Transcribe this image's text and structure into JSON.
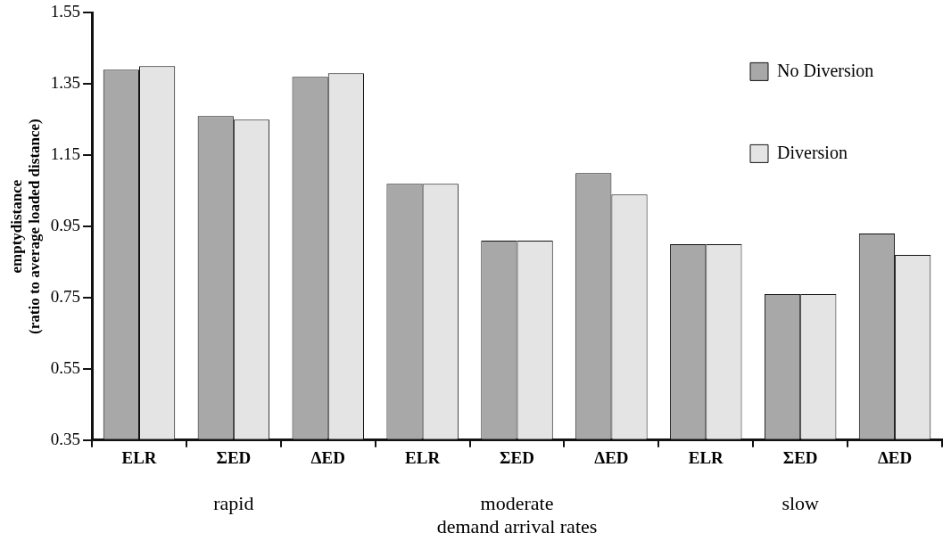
{
  "chart_data": {
    "type": "bar",
    "ylabel": "emptydistance\n(ratio to average loaded distance)",
    "xlabel": "demand arrival rates",
    "categories": [
      "ELR",
      "ΣED",
      "ΔED",
      "ELR",
      "ΣED",
      "ΔED",
      "ELR",
      "ΣED",
      "ΔED"
    ],
    "series": [
      {
        "name": "No Diversion",
        "color": "#a8a8a8",
        "values": [
          1.39,
          1.26,
          1.37,
          1.07,
          0.91,
          1.1,
          0.9,
          0.76,
          0.93
        ]
      },
      {
        "name": "Diversion",
        "color": "#e4e4e4",
        "values": [
          1.4,
          1.25,
          1.38,
          1.07,
          0.91,
          1.04,
          0.9,
          0.76,
          0.87
        ]
      }
    ],
    "annotations": [
      "rapid",
      "moderate",
      "slow"
    ],
    "ylim": [
      0.35,
      1.55
    ],
    "yticks": [
      0.35,
      0.55,
      0.75,
      0.95,
      1.15,
      1.35,
      1.55
    ],
    "grid": false,
    "legend": "top right"
  }
}
